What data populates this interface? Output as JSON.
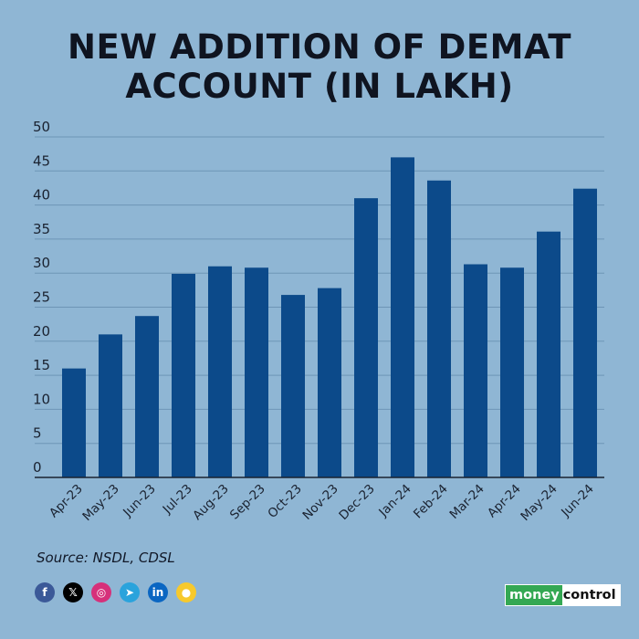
{
  "title": {
    "line1": "NEW ADDITION OF DEMAT",
    "line2": "ACCOUNT (IN LAKH)"
  },
  "colors": {
    "background": "#8fb6d4",
    "bar": "#0c4a8a",
    "grid": "#6e95b6",
    "axis": "#1a2230"
  },
  "chart_data": {
    "type": "bar",
    "title": "NEW ADDITION OF DEMAT ACCOUNT (IN LAKH)",
    "xlabel": "",
    "ylabel": "",
    "categories": [
      "Apr-23",
      "May-23",
      "Jun-23",
      "Jul-23",
      "Aug-23",
      "Sep-23",
      "Oct-23",
      "Nov-23",
      "Dec-23",
      "Jan-24",
      "Feb-24",
      "Mar-24",
      "Apr-24",
      "May-24",
      "Jun-24"
    ],
    "values": [
      16.0,
      21.0,
      23.7,
      29.9,
      31.0,
      30.8,
      26.8,
      27.8,
      41.0,
      47.0,
      43.6,
      31.3,
      30.8,
      36.1,
      42.4
    ],
    "ylim": [
      0,
      50
    ],
    "yticks": [
      0,
      5,
      10,
      15,
      20,
      25,
      30,
      35,
      40,
      45,
      50
    ],
    "grid": true,
    "legend": "none"
  },
  "source": "Source: NSDL, CDSL",
  "social": [
    {
      "name": "facebook-icon",
      "glyph": "f",
      "color": "#3b5998"
    },
    {
      "name": "x-icon",
      "glyph": "𝕏",
      "color": "#000000"
    },
    {
      "name": "instagram-icon",
      "glyph": "◎",
      "color": "#d6307a"
    },
    {
      "name": "telegram-icon",
      "glyph": "➤",
      "color": "#2aa3dc"
    },
    {
      "name": "linkedin-icon",
      "glyph": "in",
      "color": "#0a66c2"
    },
    {
      "name": "koo-icon",
      "glyph": "●",
      "color": "#f7c92c"
    }
  ],
  "logo": {
    "part1": "money",
    "part2": "control"
  }
}
